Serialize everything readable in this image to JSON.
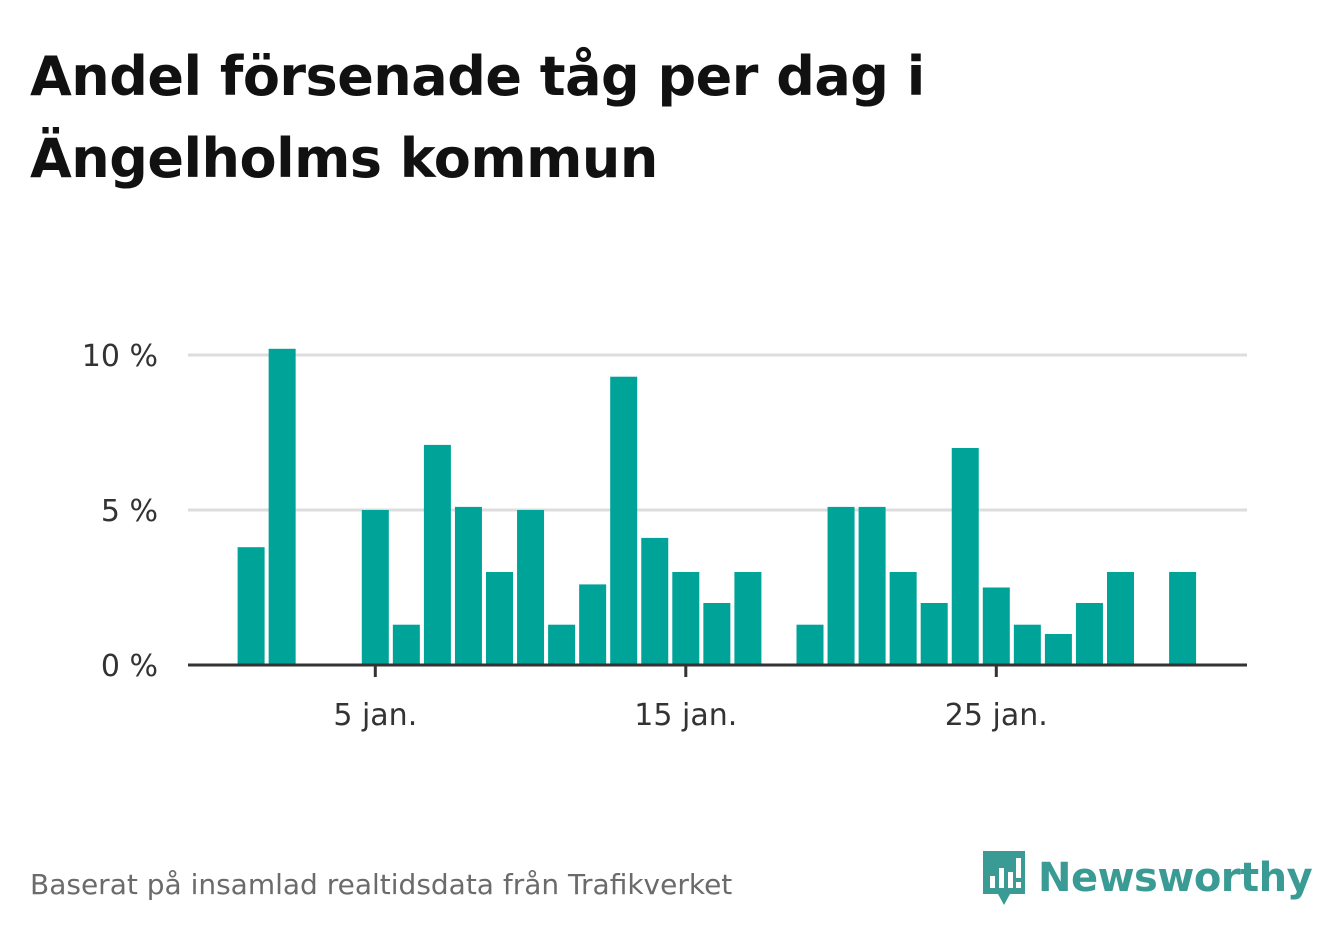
{
  "title": "Andel försenade tåg per dag i Ängelholms kommun",
  "source": "Baserat på insamlad realtidsdata från Trafikverket",
  "brand": {
    "name": "Newsworthy",
    "color": "#3a9b95"
  },
  "chart_data": {
    "type": "bar",
    "x": [
      1,
      2,
      3,
      4,
      5,
      6,
      7,
      8,
      9,
      10,
      11,
      12,
      13,
      14,
      15,
      16,
      17,
      18,
      19,
      20,
      21,
      22,
      23,
      24,
      25,
      26,
      27,
      28,
      29,
      30,
      31
    ],
    "values": [
      3.8,
      10.2,
      null,
      null,
      5.0,
      1.3,
      7.1,
      5.1,
      3.0,
      5.0,
      1.3,
      2.6,
      9.3,
      4.1,
      3.0,
      2.0,
      3.0,
      null,
      1.3,
      5.1,
      5.1,
      3.0,
      2.0,
      7.0,
      2.5,
      1.3,
      1.0,
      2.0,
      3.0,
      null,
      3.0
    ],
    "unit": "%",
    "ylim": [
      0,
      10.5
    ],
    "yticks": [
      {
        "value": 0,
        "label": "0 %"
      },
      {
        "value": 5,
        "label": "5 %"
      },
      {
        "value": 10,
        "label": "10 %"
      }
    ],
    "xticks": [
      {
        "value": 5,
        "label": "5 jan."
      },
      {
        "value": 15,
        "label": "15 jan."
      },
      {
        "value": 25,
        "label": "25 jan."
      }
    ],
    "bar_color": "#00a398",
    "grid": true
  }
}
